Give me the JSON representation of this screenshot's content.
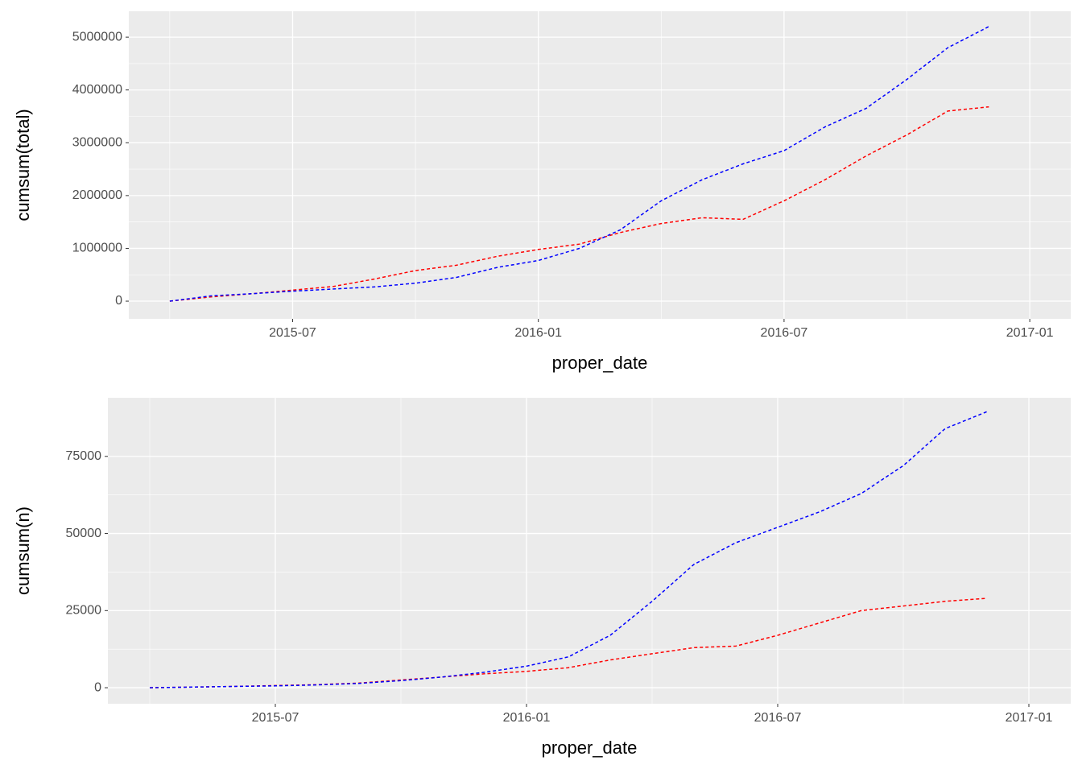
{
  "chart_data": [
    {
      "type": "line",
      "x_label": "proper_date",
      "y_label": "cumsum(total)",
      "x": [
        "2015-04",
        "2015-05",
        "2015-06",
        "2015-07",
        "2015-08",
        "2015-09",
        "2015-10",
        "2015-11",
        "2015-12",
        "2016-01",
        "2016-02",
        "2016-03",
        "2016-04",
        "2016-05",
        "2016-06",
        "2016-07",
        "2016-08",
        "2016-09",
        "2016-10",
        "2016-11",
        "2016-12"
      ],
      "series": [
        {
          "color": "#ff0000",
          "values": [
            0,
            80000,
            140000,
            210000,
            280000,
            420000,
            580000,
            680000,
            850000,
            980000,
            1080000,
            1300000,
            1470000,
            1580000,
            1550000,
            1900000,
            2300000,
            2750000,
            3150000,
            3600000,
            3680000
          ]
        },
        {
          "color": "#0000ff",
          "values": [
            0,
            100000,
            140000,
            190000,
            230000,
            270000,
            340000,
            450000,
            640000,
            770000,
            1000000,
            1350000,
            1900000,
            2300000,
            2600000,
            2850000,
            3300000,
            3650000,
            4200000,
            4800000,
            5200000
          ]
        }
      ],
      "xlim": [
        "2015-03",
        "2017-02"
      ],
      "xticks": [
        "2015-07",
        "2016-01",
        "2016-07",
        "2017-01"
      ],
      "ylim": [
        -335000,
        5490000
      ],
      "yticks": [
        0,
        1000000,
        2000000,
        3000000,
        4000000,
        5000000
      ],
      "grid": true,
      "line_style": "dashed"
    },
    {
      "type": "line",
      "x_label": "proper_date",
      "y_label": "cumsum(n)",
      "x": [
        "2015-04",
        "2015-05",
        "2015-06",
        "2015-07",
        "2015-08",
        "2015-09",
        "2015-10",
        "2015-11",
        "2015-12",
        "2016-01",
        "2016-02",
        "2016-03",
        "2016-04",
        "2016-05",
        "2016-06",
        "2016-07",
        "2016-08",
        "2016-09",
        "2016-10",
        "2016-11",
        "2016-12"
      ],
      "series": [
        {
          "color": "#ff0000",
          "values": [
            0,
            200,
            400,
            700,
            1000,
            1500,
            2500,
            3500,
            4500,
            5300,
            6500,
            9000,
            11000,
            13000,
            13500,
            17000,
            21000,
            25000,
            26500,
            28000,
            29000
          ]
        },
        {
          "color": "#0000ff",
          "values": [
            0,
            200,
            400,
            600,
            900,
            1400,
            2300,
            3500,
            5000,
            7000,
            10000,
            17000,
            28000,
            40000,
            47000,
            52000,
            57000,
            63000,
            72000,
            84000,
            89500
          ]
        }
      ],
      "xlim": [
        "2015-03",
        "2017-02"
      ],
      "xticks": [
        "2015-07",
        "2016-01",
        "2016-07",
        "2017-01"
      ],
      "ylim": [
        -5200,
        94000
      ],
      "yticks": [
        0,
        25000,
        50000,
        75000
      ],
      "grid": true,
      "line_style": "dashed"
    }
  ]
}
